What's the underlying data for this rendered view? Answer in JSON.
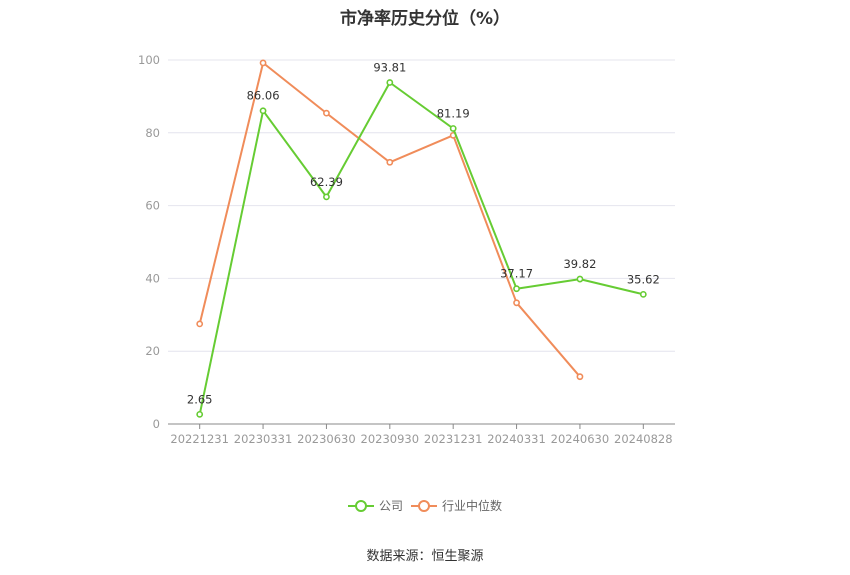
{
  "chart_data": {
    "type": "line",
    "title": "市净率历史分位（%）",
    "source": "数据来源：恒生聚源",
    "categories": [
      "20221231",
      "20230331",
      "20230630",
      "20230930",
      "20231231",
      "20240331",
      "20240630",
      "20240828"
    ],
    "ylim": [
      0,
      100
    ],
    "yticks": [
      0,
      20,
      40,
      60,
      80,
      100
    ],
    "grid": true,
    "legend_position": "bottom",
    "series": [
      {
        "name": "公司",
        "color": "#66cc33",
        "values": [
          2.65,
          86.06,
          62.39,
          93.81,
          81.19,
          37.17,
          39.82,
          35.62
        ],
        "labels": [
          "2.65",
          "86.06",
          "62.39",
          "93.81",
          "81.19",
          "37.17",
          "39.82",
          "35.62"
        ]
      },
      {
        "name": "行业中位数",
        "color": "#f08c5a",
        "values": [
          27.5,
          99.2,
          85.4,
          71.9,
          79.3,
          33.3,
          13.0,
          null
        ],
        "labels": null
      }
    ]
  }
}
